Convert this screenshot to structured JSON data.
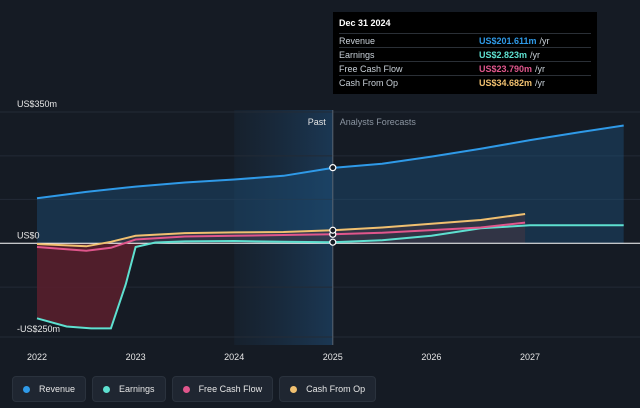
{
  "tooltip": {
    "date": "Dec 31 2024",
    "rows": [
      {
        "label": "Revenue",
        "value": "US$201.611m",
        "unit": "/yr",
        "color": "#2f9ae8"
      },
      {
        "label": "Earnings",
        "value": "US$2.823m",
        "unit": "/yr",
        "color": "#5ee0d0"
      },
      {
        "label": "Free Cash Flow",
        "value": "US$23.790m",
        "unit": "/yr",
        "color": "#e0568c"
      },
      {
        "label": "Cash From Op",
        "value": "US$34.682m",
        "unit": "/yr",
        "color": "#f0c070"
      }
    ]
  },
  "legend": [
    {
      "label": "Revenue",
      "color": "#2f9ae8"
    },
    {
      "label": "Earnings",
      "color": "#5ee0d0"
    },
    {
      "label": "Free Cash Flow",
      "color": "#e0568c"
    },
    {
      "label": "Cash From Op",
      "color": "#f0c070"
    }
  ],
  "chart_data": {
    "type": "line",
    "xlim": [
      2022,
      2028
    ],
    "ylim": [
      -280,
      380
    ],
    "x_ticks": [
      "2022",
      "2023",
      "2024",
      "2025",
      "2026",
      "2027"
    ],
    "y_labels": [
      {
        "value": 350,
        "text": "US$350m"
      },
      {
        "value": 0,
        "text": "US$0"
      },
      {
        "value": -250,
        "text": "-US$250m"
      }
    ],
    "past_label": "Past",
    "forecast_label": "Analysts Forecasts",
    "past_end_x": 2025.0,
    "highlight_start_x": 2024.0,
    "series": [
      {
        "name": "Revenue",
        "color": "#2f9ae8",
        "points": [
          [
            2022.0,
            120
          ],
          [
            2022.5,
            137
          ],
          [
            2023.0,
            151
          ],
          [
            2023.5,
            162
          ],
          [
            2024.0,
            170
          ],
          [
            2024.5,
            180
          ],
          [
            2025.0,
            201
          ],
          [
            2025.5,
            212
          ],
          [
            2026.0,
            231
          ],
          [
            2026.5,
            252
          ],
          [
            2027.0,
            275
          ],
          [
            2027.5,
            296
          ],
          [
            2027.95,
            314
          ]
        ]
      },
      {
        "name": "Earnings",
        "color": "#5ee0d0",
        "points": [
          [
            2022.0,
            -200
          ],
          [
            2022.3,
            -222
          ],
          [
            2022.55,
            -227
          ],
          [
            2022.75,
            -227
          ],
          [
            2022.9,
            -110
          ],
          [
            2023.0,
            -10
          ],
          [
            2023.2,
            2
          ],
          [
            2023.5,
            5
          ],
          [
            2024.0,
            6
          ],
          [
            2024.5,
            4
          ],
          [
            2025.0,
            2.8
          ],
          [
            2025.5,
            8
          ],
          [
            2026.0,
            20
          ],
          [
            2026.5,
            40
          ],
          [
            2027.0,
            48
          ],
          [
            2027.5,
            48
          ],
          [
            2027.95,
            48
          ]
        ]
      },
      {
        "name": "Free Cash Flow",
        "color": "#e0568c",
        "points": [
          [
            2022.0,
            -10
          ],
          [
            2022.25,
            -15
          ],
          [
            2022.5,
            -20
          ],
          [
            2022.75,
            -12
          ],
          [
            2023.0,
            10
          ],
          [
            2023.5,
            18
          ],
          [
            2024.0,
            20
          ],
          [
            2024.5,
            22
          ],
          [
            2025.0,
            23.8
          ],
          [
            2025.5,
            28
          ],
          [
            2026.0,
            35
          ],
          [
            2026.5,
            42
          ],
          [
            2026.95,
            55
          ]
        ]
      },
      {
        "name": "Cash From Op",
        "color": "#f0c070",
        "points": [
          [
            2022.0,
            -2
          ],
          [
            2022.25,
            -5
          ],
          [
            2022.5,
            -8
          ],
          [
            2022.75,
            4
          ],
          [
            2023.0,
            20
          ],
          [
            2023.5,
            27
          ],
          [
            2024.0,
            29
          ],
          [
            2024.5,
            30
          ],
          [
            2025.0,
            34.7
          ],
          [
            2025.5,
            42
          ],
          [
            2026.0,
            52
          ],
          [
            2026.5,
            62
          ],
          [
            2026.95,
            78
          ]
        ]
      }
    ]
  }
}
